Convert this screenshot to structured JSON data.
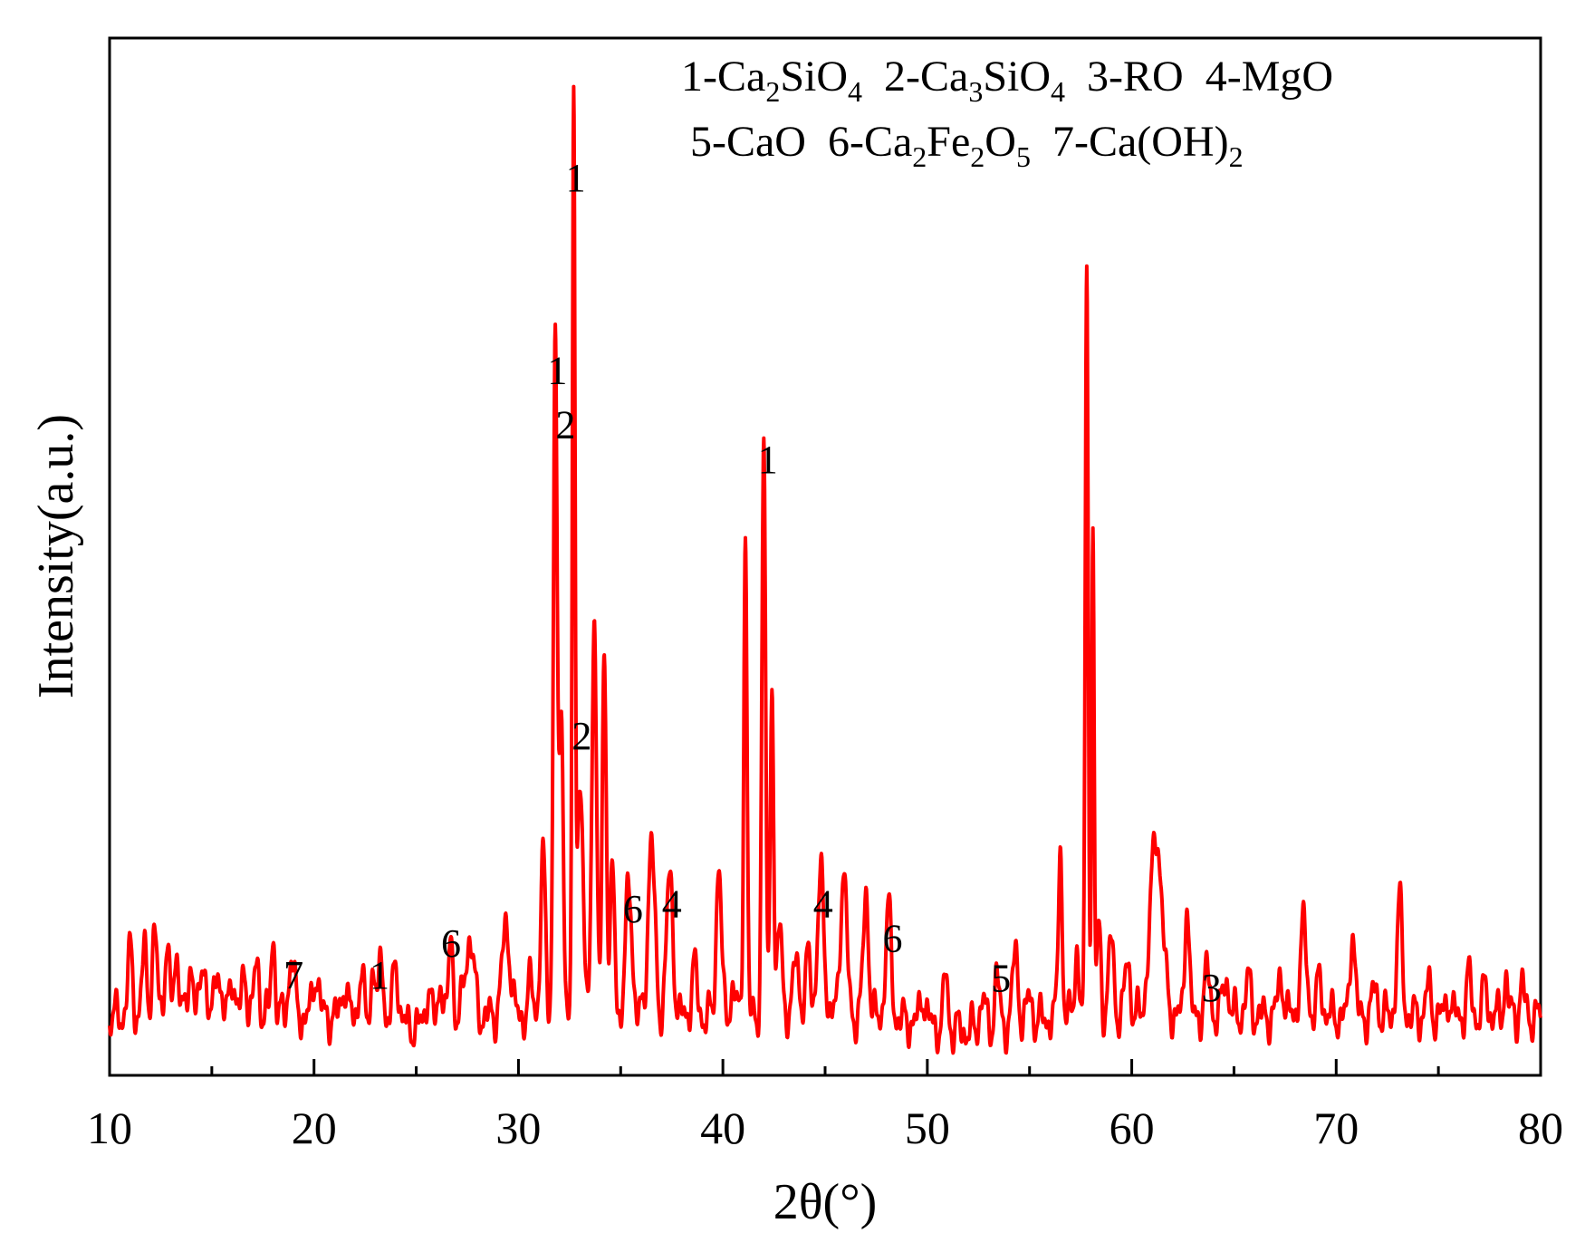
{
  "chart_data": {
    "type": "line",
    "title": "",
    "xlabel": "2θ(°)",
    "ylabel": "Intensity(a.u.)",
    "xlim": [
      10,
      80
    ],
    "ylim": [
      0,
      1050
    ],
    "xticks": [
      "10",
      "20",
      "30",
      "40",
      "50",
      "60",
      "70",
      "80"
    ],
    "yticks_shown": false,
    "grid": false,
    "series_color": "#ff0000",
    "legend_lines": [
      [
        {
          "id": "1",
          "parts": [
            [
              "n",
              "1-Ca"
            ],
            [
              "s",
              "2"
            ],
            [
              "n",
              "SiO"
            ],
            [
              "s",
              "4"
            ]
          ]
        },
        {
          "id": "2",
          "parts": [
            [
              "n",
              "2-Ca"
            ],
            [
              "s",
              "3"
            ],
            [
              "n",
              "SiO"
            ],
            [
              "s",
              "4"
            ]
          ]
        },
        {
          "id": "3",
          "parts": [
            [
              "n",
              "3-RO"
            ]
          ]
        },
        {
          "id": "4",
          "parts": [
            [
              "n",
              "4-MgO"
            ]
          ]
        }
      ],
      [
        {
          "id": "5",
          "parts": [
            [
              "n",
              "5-CaO"
            ]
          ]
        },
        {
          "id": "6",
          "parts": [
            [
              "n",
              "6-Ca"
            ],
            [
              "s",
              "2"
            ],
            [
              "n",
              "Fe"
            ],
            [
              "s",
              "2"
            ],
            [
              "n",
              "O"
            ],
            [
              "s",
              "5"
            ]
          ]
        },
        {
          "id": "7",
          "parts": [
            [
              "n",
              "7-Ca(OH)"
            ],
            [
              "s",
              "2"
            ]
          ]
        }
      ]
    ],
    "peak_labels": [
      {
        "label": "7",
        "x": 19.0,
        "y": 88
      },
      {
        "label": "1",
        "x": 23.2,
        "y": 88
      },
      {
        "label": "6",
        "x": 26.7,
        "y": 120
      },
      {
        "label": "1",
        "x": 31.9,
        "y": 700
      },
      {
        "label": "2",
        "x": 32.3,
        "y": 645
      },
      {
        "label": "1",
        "x": 32.8,
        "y": 895
      },
      {
        "label": "2",
        "x": 33.1,
        "y": 330
      },
      {
        "label": "6",
        "x": 35.6,
        "y": 155
      },
      {
        "label": "4",
        "x": 37.5,
        "y": 160
      },
      {
        "label": "1",
        "x": 42.2,
        "y": 610
      },
      {
        "label": "4",
        "x": 44.9,
        "y": 160
      },
      {
        "label": "6",
        "x": 48.3,
        "y": 125
      },
      {
        "label": "5",
        "x": 53.6,
        "y": 85
      },
      {
        "label": "3",
        "x": 63.9,
        "y": 75
      }
    ],
    "peaks": [
      {
        "x": 11.0,
        "y": 65,
        "w": 0.12
      },
      {
        "x": 11.7,
        "y": 65,
        "w": 0.12
      },
      {
        "x": 12.2,
        "y": 85,
        "w": 0.12
      },
      {
        "x": 12.8,
        "y": 70,
        "w": 0.12
      },
      {
        "x": 13.3,
        "y": 65,
        "w": 0.12
      },
      {
        "x": 14.0,
        "y": 55,
        "w": 0.12
      },
      {
        "x": 14.6,
        "y": 60,
        "w": 0.12
      },
      {
        "x": 15.3,
        "y": 55,
        "w": 0.12
      },
      {
        "x": 16.0,
        "y": 45,
        "w": 0.12
      },
      {
        "x": 16.6,
        "y": 45,
        "w": 0.12
      },
      {
        "x": 17.2,
        "y": 55,
        "w": 0.12
      },
      {
        "x": 18.0,
        "y": 80,
        "w": 0.1
      },
      {
        "x": 18.9,
        "y": 60,
        "w": 0.14
      },
      {
        "x": 20.1,
        "y": 45,
        "w": 0.14
      },
      {
        "x": 21.5,
        "y": 35,
        "w": 0.13
      },
      {
        "x": 22.3,
        "y": 45,
        "w": 0.12
      },
      {
        "x": 22.9,
        "y": 60,
        "w": 0.1
      },
      {
        "x": 23.3,
        "y": 70,
        "w": 0.1
      },
      {
        "x": 24.0,
        "y": 60,
        "w": 0.14
      },
      {
        "x": 25.6,
        "y": 40,
        "w": 0.12
      },
      {
        "x": 26.2,
        "y": 45,
        "w": 0.12
      },
      {
        "x": 26.7,
        "y": 100,
        "w": 0.09
      },
      {
        "x": 27.6,
        "y": 80,
        "w": 0.22
      },
      {
        "x": 29.4,
        "y": 90,
        "w": 0.2
      },
      {
        "x": 30.6,
        "y": 35,
        "w": 0.12
      },
      {
        "x": 31.2,
        "y": 160,
        "w": 0.12
      },
      {
        "x": 31.8,
        "y": 700,
        "w": 0.09
      },
      {
        "x": 32.1,
        "y": 310,
        "w": 0.1
      },
      {
        "x": 32.7,
        "y": 890,
        "w": 0.065
      },
      {
        "x": 33.0,
        "y": 240,
        "w": 0.15
      },
      {
        "x": 33.7,
        "y": 410,
        "w": 0.11
      },
      {
        "x": 34.2,
        "y": 370,
        "w": 0.1
      },
      {
        "x": 34.6,
        "y": 140,
        "w": 0.11
      },
      {
        "x": 35.4,
        "y": 130,
        "w": 0.16
      },
      {
        "x": 36.5,
        "y": 180,
        "w": 0.16
      },
      {
        "x": 37.4,
        "y": 140,
        "w": 0.16
      },
      {
        "x": 38.6,
        "y": 50,
        "w": 0.13
      },
      {
        "x": 39.8,
        "y": 160,
        "w": 0.12
      },
      {
        "x": 40.5,
        "y": 30,
        "w": 0.12
      },
      {
        "x": 41.1,
        "y": 490,
        "w": 0.08
      },
      {
        "x": 42.0,
        "y": 575,
        "w": 0.09
      },
      {
        "x": 42.4,
        "y": 350,
        "w": 0.08
      },
      {
        "x": 42.8,
        "y": 90,
        "w": 0.12
      },
      {
        "x": 43.6,
        "y": 70,
        "w": 0.12
      },
      {
        "x": 44.2,
        "y": 65,
        "w": 0.12
      },
      {
        "x": 44.8,
        "y": 140,
        "w": 0.16
      },
      {
        "x": 45.9,
        "y": 145,
        "w": 0.16
      },
      {
        "x": 47.0,
        "y": 125,
        "w": 0.13
      },
      {
        "x": 48.1,
        "y": 110,
        "w": 0.14
      },
      {
        "x": 49.8,
        "y": 30,
        "w": 0.14
      },
      {
        "x": 50.9,
        "y": 55,
        "w": 0.1
      },
      {
        "x": 52.7,
        "y": 35,
        "w": 0.12
      },
      {
        "x": 53.4,
        "y": 60,
        "w": 0.1
      },
      {
        "x": 54.3,
        "y": 70,
        "w": 0.14
      },
      {
        "x": 55.0,
        "y": 25,
        "w": 0.12
      },
      {
        "x": 56.5,
        "y": 180,
        "w": 0.09
      },
      {
        "x": 57.3,
        "y": 70,
        "w": 0.1
      },
      {
        "x": 57.8,
        "y": 770,
        "w": 0.07
      },
      {
        "x": 58.1,
        "y": 480,
        "w": 0.06
      },
      {
        "x": 58.4,
        "y": 90,
        "w": 0.1
      },
      {
        "x": 59.0,
        "y": 80,
        "w": 0.12
      },
      {
        "x": 59.8,
        "y": 60,
        "w": 0.12
      },
      {
        "x": 61.2,
        "y": 185,
        "w": 0.28
      },
      {
        "x": 62.7,
        "y": 125,
        "w": 0.1
      },
      {
        "x": 63.7,
        "y": 45,
        "w": 0.14
      },
      {
        "x": 64.6,
        "y": 40,
        "w": 0.14
      },
      {
        "x": 65.7,
        "y": 35,
        "w": 0.14
      },
      {
        "x": 67.3,
        "y": 40,
        "w": 0.14
      },
      {
        "x": 68.4,
        "y": 90,
        "w": 0.16
      },
      {
        "x": 69.2,
        "y": 40,
        "w": 0.12
      },
      {
        "x": 70.8,
        "y": 95,
        "w": 0.11
      },
      {
        "x": 71.9,
        "y": 30,
        "w": 0.12
      },
      {
        "x": 73.1,
        "y": 115,
        "w": 0.13
      },
      {
        "x": 74.5,
        "y": 30,
        "w": 0.12
      },
      {
        "x": 75.5,
        "y": 20,
        "w": 0.12
      },
      {
        "x": 76.5,
        "y": 40,
        "w": 0.12
      },
      {
        "x": 77.3,
        "y": 35,
        "w": 0.1
      },
      {
        "x": 78.3,
        "y": 40,
        "w": 0.1
      },
      {
        "x": 79.1,
        "y": 35,
        "w": 0.1
      }
    ]
  }
}
